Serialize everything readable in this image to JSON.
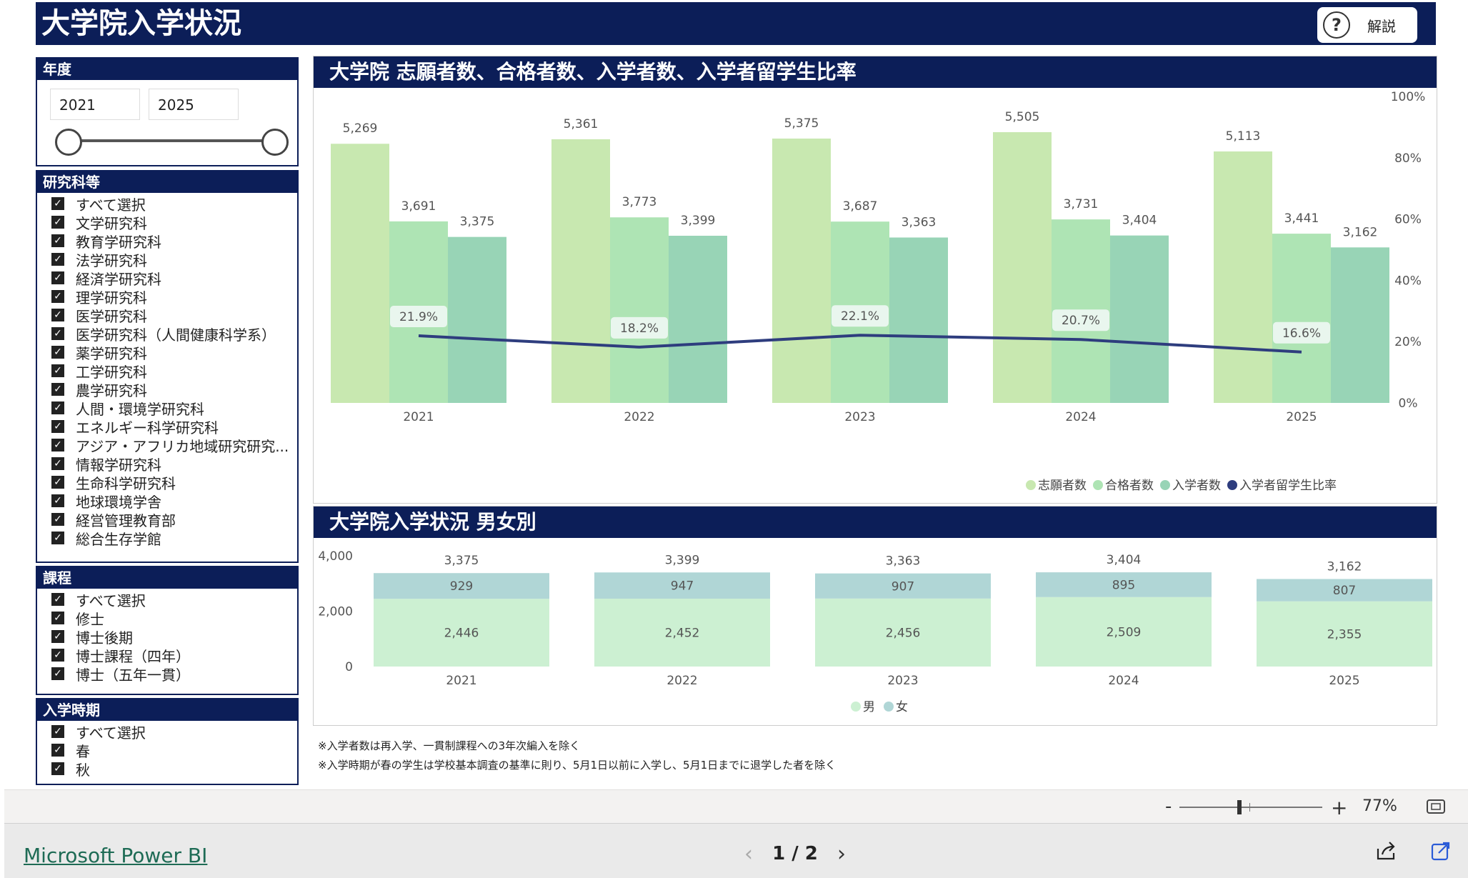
{
  "header": {
    "title": "大学院入学状況",
    "help_label": "解説",
    "help_icon_glyph": "?"
  },
  "year_slicer": {
    "title": "年度",
    "from": "2021",
    "to": "2025"
  },
  "dept_slicer": {
    "title": "研究科等",
    "items": [
      "すべて選択",
      "文学研究科",
      "教育学研究科",
      "法学研究科",
      "経済学研究科",
      "理学研究科",
      "医学研究科",
      "医学研究科（人間健康科学系）",
      "薬学研究科",
      "工学研究科",
      "農学研究科",
      "人間・環境学研究科",
      "エネルギー科学研究科",
      "アジア・アフリカ地域研究研究...",
      "情報学研究科",
      "生命科学研究科",
      "地球環境学舎",
      "経営管理教育部",
      "総合生存学館"
    ]
  },
  "course_slicer": {
    "title": "課程",
    "items": [
      "すべて選択",
      "修士",
      "博士後期",
      "博士課程（四年）",
      "博士（五年一貫）"
    ]
  },
  "term_slicer": {
    "title": "入学時期",
    "items": [
      "すべて選択",
      "春",
      "秋"
    ]
  },
  "check_glyph": "✓",
  "chart1_title": "大学院 志願者数、合格者数、入学者数、入学者留学生比率",
  "chart2_title": "大学院入学状況 男女別",
  "chart_data": [
    {
      "type": "bar",
      "title": "大学院 志願者数、合格者数、入学者数、入学者留学生比率",
      "categories": [
        "2021",
        "2022",
        "2023",
        "2024",
        "2025"
      ],
      "series": [
        {
          "name": "志願者数",
          "values": [
            5269,
            5361,
            5375,
            5505,
            5113
          ],
          "color": "#c8e8b0"
        },
        {
          "name": "合格者数",
          "values": [
            3691,
            3773,
            3687,
            3731,
            3441
          ],
          "color": "#aee4b4"
        },
        {
          "name": "入学者数",
          "values": [
            3375,
            3399,
            3363,
            3404,
            3162
          ],
          "color": "#98d4b6"
        }
      ],
      "line_series": {
        "name": "入学者留学生比率",
        "values": [
          21.9,
          18.2,
          22.1,
          20.7,
          16.6
        ],
        "color": "#2e3d7e"
      },
      "ylim": [
        0,
        5505
      ],
      "y2_ticks": [
        "0%",
        "20%",
        "40%",
        "60%",
        "80%",
        "100%"
      ],
      "y2lim": [
        0,
        100
      ],
      "legend_position": "bottom"
    },
    {
      "type": "bar",
      "stacked": true,
      "title": "大学院入学状況 男女別",
      "categories": [
        "2021",
        "2022",
        "2023",
        "2024",
        "2025"
      ],
      "series": [
        {
          "name": "男",
          "values": [
            2446,
            2452,
            2456,
            2509,
            2355
          ],
          "color": "#ccf0d2"
        },
        {
          "name": "女",
          "values": [
            929,
            947,
            907,
            895,
            807
          ],
          "color": "#b0d6d6"
        }
      ],
      "totals": [
        3375,
        3399,
        3363,
        3404,
        3162
      ],
      "y_ticks": [
        "0",
        "2,000",
        "4,000"
      ],
      "ylim": [
        0,
        4000
      ],
      "legend_position": "bottom"
    }
  ],
  "notes": [
    "※入学者数は再入学、一貫制課程への3年次編入を除く",
    "※入学時期が春の学生は学校基本調査の基準に則り、5月1日以前に入学し、5月1日までに退学した者を除く"
  ],
  "zoom": {
    "minus": "-",
    "plus": "+",
    "level": "77%",
    "level_fraction": 0.42
  },
  "footer": {
    "brand": "Microsoft Power BI",
    "page_indicator": "1 / 2",
    "prev_glyph": "‹",
    "next_glyph": "›"
  }
}
